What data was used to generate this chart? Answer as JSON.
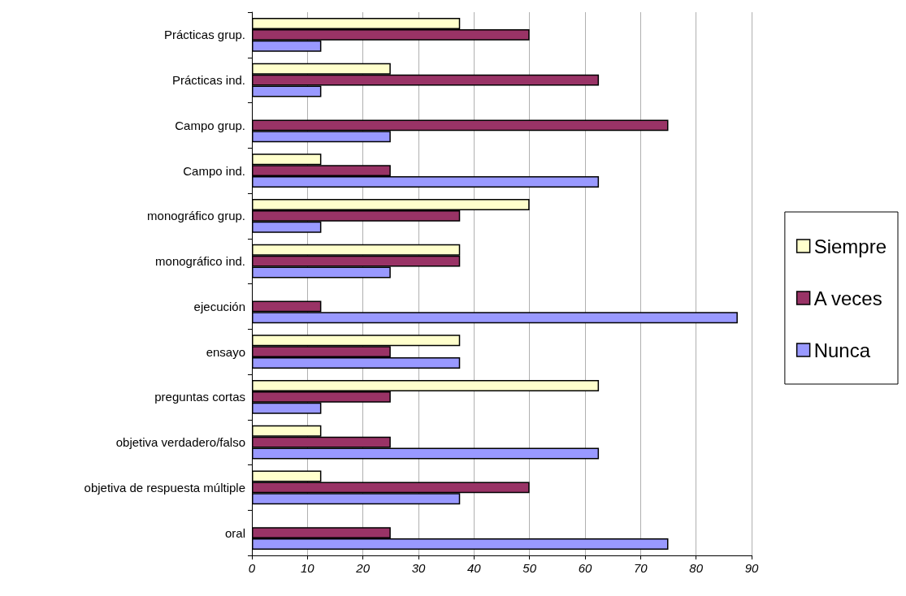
{
  "chart_data": {
    "type": "bar",
    "orientation": "horizontal",
    "categories": [
      "Prácticas grup.",
      "Prácticas ind.",
      "Campo grup.",
      "Campo ind.",
      "monográfico grup.",
      "monográfico ind.",
      "ejecución",
      "ensayo",
      "preguntas cortas",
      "objetiva verdadero/falso",
      "objetiva de respuesta múltiple",
      "oral"
    ],
    "series": [
      {
        "name": "Siempre",
        "color": "#ffffcc",
        "values": [
          37.5,
          25,
          0,
          12.5,
          50,
          37.5,
          0,
          37.5,
          62.5,
          12.5,
          12.5,
          0
        ]
      },
      {
        "name": "A veces",
        "color": "#993366",
        "values": [
          50,
          62.5,
          75,
          25,
          37.5,
          37.5,
          12.5,
          25,
          25,
          25,
          50,
          25
        ]
      },
      {
        "name": "Nunca",
        "color": "#9999ff",
        "values": [
          12.5,
          12.5,
          25,
          62.5,
          12.5,
          25,
          87.5,
          37.5,
          12.5,
          62.5,
          37.5,
          75
        ]
      }
    ],
    "xlim": [
      0,
      90
    ],
    "xticks": [
      0,
      10,
      20,
      30,
      40,
      50,
      60,
      70,
      80,
      90
    ],
    "grid": "x",
    "legend": "right"
  }
}
